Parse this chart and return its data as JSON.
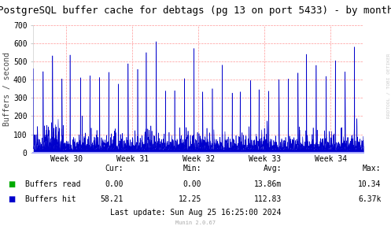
{
  "title": "PostgreSQL buffer cache for debtags (pg 13 on port 5433) - by month",
  "ylabel": "Buffers / second",
  "background_color": "#ffffff",
  "plot_bg_color": "#ffffff",
  "grid_color": "#ff9999",
  "y_max": 700,
  "y_min": 0,
  "y_ticks": [
    0,
    100,
    200,
    300,
    400,
    500,
    600,
    700
  ],
  "x_tick_labels": [
    "Week 30",
    "Week 31",
    "Week 32",
    "Week 33",
    "Week 34"
  ],
  "hit_color": "#0000cc",
  "read_color": "#00aa00",
  "legend_labels": [
    "Buffers read",
    "Buffers hit"
  ],
  "cur_read": "0.00",
  "cur_hit": "58.21",
  "min_read": "0.00",
  "min_hit": "12.25",
  "avg_read": "13.86m",
  "avg_hit": "112.83",
  "max_read": "10.34",
  "max_hit": "6.37k",
  "last_update": "Last update: Sun Aug 25 16:25:00 2024",
  "munin_version": "Munin 2.0.67",
  "right_label": "RRDTOOL / TOBI OETIKER",
  "title_fontsize": 9,
  "axis_fontsize": 7,
  "legend_fontsize": 7,
  "stats_fontsize": 7,
  "bottom_color": "#aaaaff"
}
